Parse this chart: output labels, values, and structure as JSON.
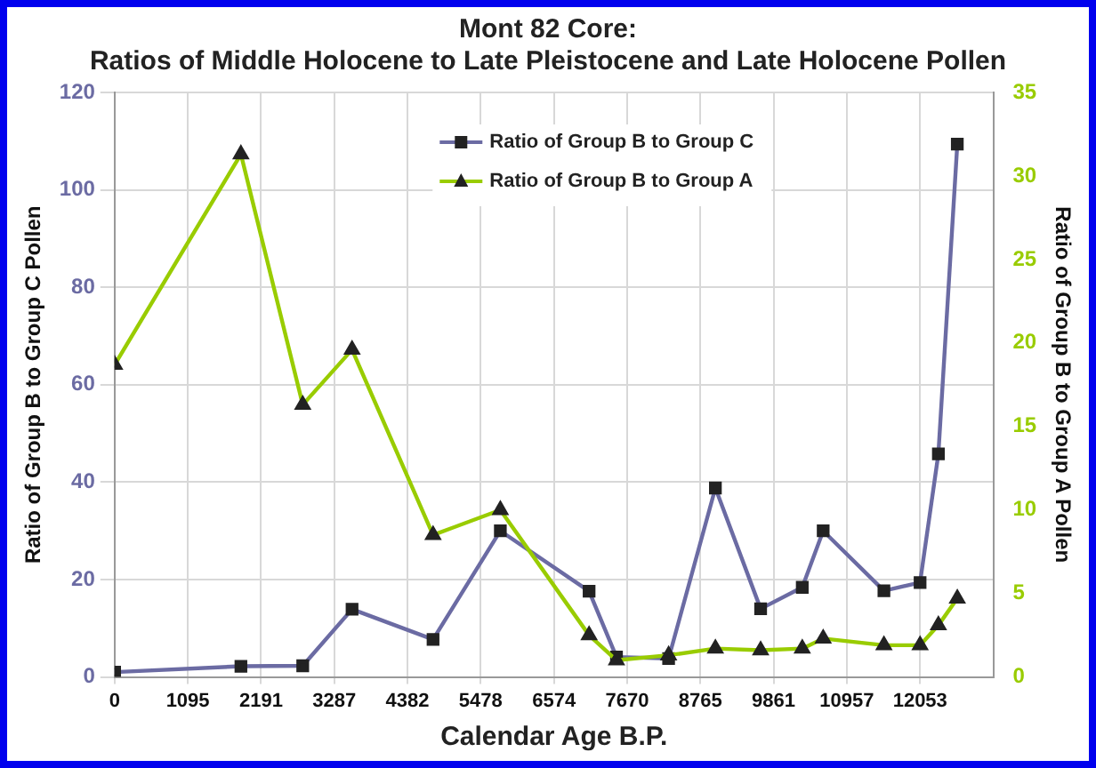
{
  "chart_data": {
    "type": "line",
    "title": [
      "Mont 82 Core:",
      "Ratios of Middle Holocene to Late Pleistocene and Late Holocene Pollen"
    ],
    "xlabel": "Calendar Age B.P.",
    "ylabel": "Ratio of Group B to Group C Pollen",
    "y2label": "Ratio of Group B to Group A Pollen",
    "x": [
      0,
      1890,
      2815,
      3553,
      4765,
      5772,
      7100,
      7510,
      8290,
      8990,
      9667,
      10290,
      10603,
      11512,
      12053,
      12327,
      12610
    ],
    "series": [
      {
        "name": "Ratio of Group B to Group C",
        "color": "#6b6ba3",
        "marker": "square",
        "values": [
          1,
          2.2,
          2.3,
          13.9,
          7.7,
          30,
          17.6,
          4.1,
          3.8,
          38.8,
          14,
          18.4,
          30,
          17.7,
          19.4,
          45.8,
          109.4
        ]
      },
      {
        "name": "Ratio of Group B to Group A",
        "color": "#99cc00",
        "marker": "triangle",
        "axis": "y2",
        "values": [
          18.7,
          31.3,
          16.3,
          19.6,
          8.5,
          10,
          2.5,
          1,
          1.3,
          1.7,
          1.6,
          1.7,
          2.3,
          1.9,
          1.9,
          3.1,
          4.7
        ]
      }
    ],
    "xlim": [
      0,
      13148
    ],
    "xticks": [
      0,
      1095,
      2191,
      3287,
      4382,
      5478,
      6574,
      7670,
      8765,
      9861,
      10957,
      12053
    ],
    "ylim": [
      0,
      120
    ],
    "yticks": [
      0,
      20,
      40,
      60,
      80,
      100,
      120
    ],
    "y2lim": [
      0,
      35
    ],
    "y2ticks": [
      0,
      5,
      10,
      15,
      20,
      25,
      30,
      35
    ],
    "grid": true,
    "legend": "top",
    "line_style": "solid"
  }
}
